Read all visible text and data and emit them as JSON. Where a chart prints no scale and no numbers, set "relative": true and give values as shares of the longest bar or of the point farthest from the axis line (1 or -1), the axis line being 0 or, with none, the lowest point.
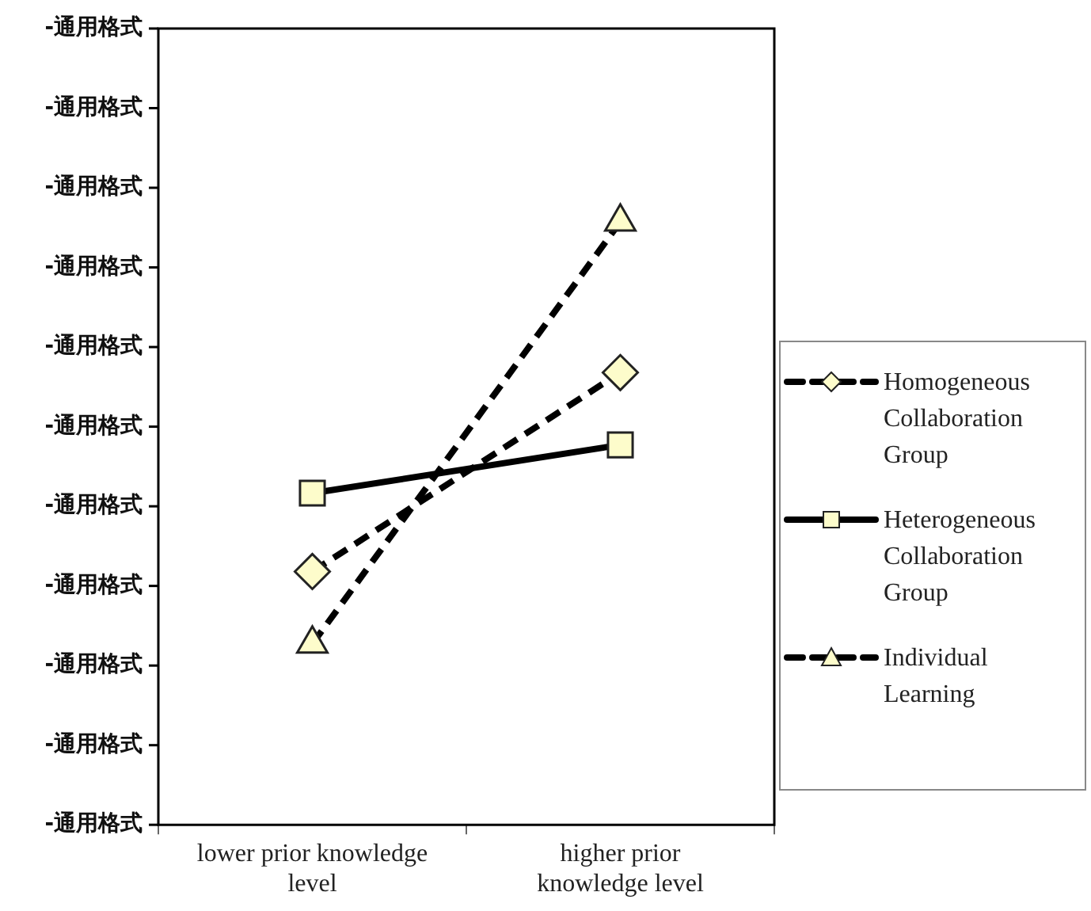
{
  "chart_data": {
    "type": "line",
    "relative": true,
    "categories": [
      "lower prior knowledge level",
      "higher prior knowledge level"
    ],
    "series": [
      {
        "name": "Homogeneous Collaboration Group",
        "color": "#000000",
        "values": [
          0.42,
          0.75
        ],
        "marker": "diamond",
        "line_style": "dashed"
      },
      {
        "name": "Heterogeneous Collaboration Group",
        "color": "#000000",
        "values": [
          0.55,
          0.63
        ],
        "marker": "square",
        "line_style": "solid"
      },
      {
        "name": "Individual Learning",
        "color": "#000000",
        "values": [
          0.3,
          1
        ],
        "marker": "triangle",
        "line_style": "dashed"
      }
    ],
    "annotations": [
      "-通用格式",
      "-通用格式",
      "-通用格式",
      "-通用格式",
      "-通用格式",
      "-通用格式",
      "-通用格式",
      "-通用格式",
      "-通用格式",
      "-通用格式",
      "-通用格式"
    ],
    "grid": false,
    "legend": "right"
  }
}
